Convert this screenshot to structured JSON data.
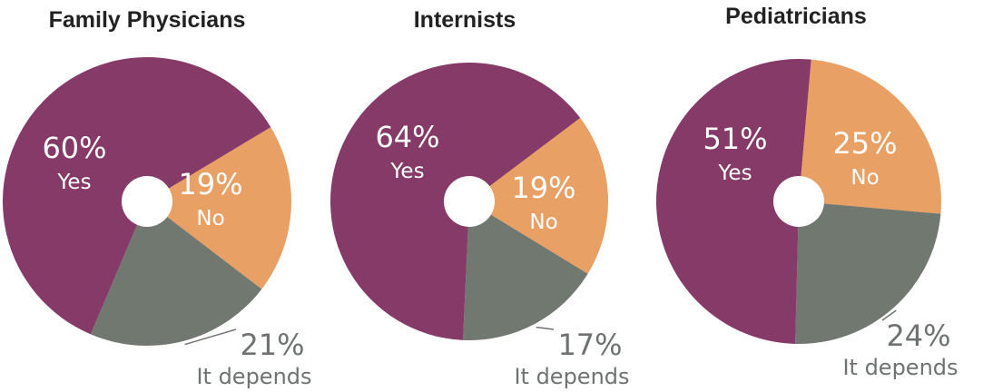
{
  "colors": {
    "Yes": "#853a67",
    "No": "#e8a064",
    "It depends": "#707870",
    "outside_label": "#6e7370"
  },
  "chart_data": [
    {
      "type": "pie",
      "title": "Family Physicians",
      "donut": true,
      "slices": [
        {
          "label": "Yes",
          "value": 60,
          "display": "60%"
        },
        {
          "label": "No",
          "value": 19,
          "display": "19%"
        },
        {
          "label": "It depends",
          "value": 21,
          "display": "21%"
        }
      ]
    },
    {
      "type": "pie",
      "title": "Internists",
      "donut": true,
      "slices": [
        {
          "label": "Yes",
          "value": 64,
          "display": "64%"
        },
        {
          "label": "No",
          "value": 19,
          "display": "19%"
        },
        {
          "label": "It depends",
          "value": 17,
          "display": "17%"
        }
      ]
    },
    {
      "type": "pie",
      "title": "Pediatricians",
      "donut": true,
      "slices": [
        {
          "label": "Yes",
          "value": 51,
          "display": "51%"
        },
        {
          "label": "No",
          "value": 25,
          "display": "25%"
        },
        {
          "label": "It depends",
          "value": 24,
          "display": "24%"
        }
      ]
    }
  ]
}
